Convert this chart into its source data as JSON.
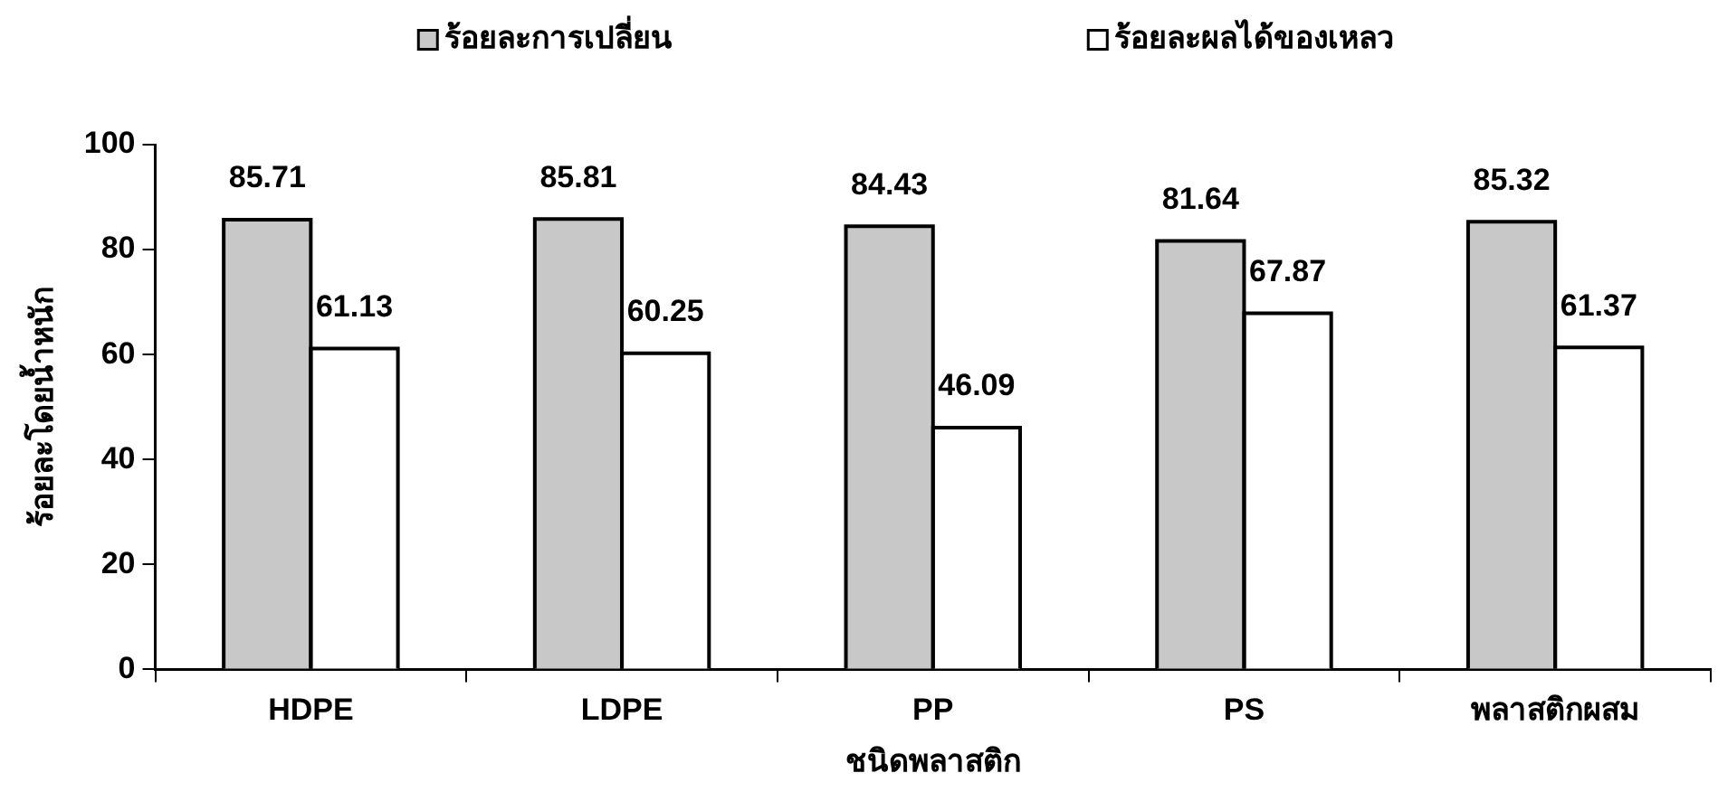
{
  "chart_data": {
    "type": "bar",
    "categories": [
      "HDPE",
      "LDPE",
      "PP",
      "PS",
      "พลาสติกผสม"
    ],
    "series": [
      {
        "name": "ร้อยละการเปลี่ยน",
        "color": "#c8c8c8",
        "values": [
          85.71,
          85.81,
          84.43,
          81.64,
          85.32
        ]
      },
      {
        "name": "ร้อยละผลได้ของเหลว",
        "color": "#ffffff",
        "values": [
          61.13,
          60.25,
          46.09,
          67.87,
          61.37
        ]
      }
    ],
    "xlabel": "ชนิดพลาสติก",
    "ylabel": "ร้อยละโดยน้ำหนัก",
    "ylim": [
      0,
      100
    ],
    "yticks": [
      0,
      20,
      40,
      60,
      80,
      100
    ],
    "data_labels": true,
    "legend": "top"
  }
}
